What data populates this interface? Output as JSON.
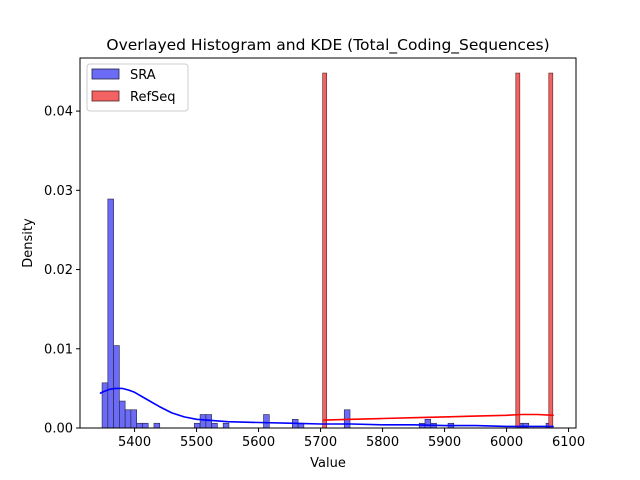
{
  "chart_data": {
    "type": "bar",
    "title": "Overlayed Histogram and KDE (Total_Coding_Sequences)",
    "xlabel": "Value",
    "ylabel": "Density",
    "xlim": [
      5312,
      6112
    ],
    "ylim": [
      0,
      0.0467
    ],
    "xticks": [
      5400,
      5500,
      5600,
      5700,
      5800,
      5900,
      6000,
      6100
    ],
    "yticks": [
      0.0,
      0.01,
      0.02,
      0.03,
      0.04
    ],
    "ytick_labels": [
      "0.00",
      "0.01",
      "0.02",
      "0.03",
      "0.04"
    ],
    "legend": {
      "position": "top-left"
    },
    "bin_width": 9.3,
    "series": [
      {
        "name": "SRA",
        "color": "#0000ff",
        "bar_color": "#6b6bf5",
        "edge_color": "#222244",
        "bars": [
          {
            "x": 5347.6,
            "y": 0.0057
          },
          {
            "x": 5356.9,
            "y": 0.0289
          },
          {
            "x": 5366.2,
            "y": 0.0104
          },
          {
            "x": 5375.5,
            "y": 0.0034
          },
          {
            "x": 5384.8,
            "y": 0.0023
          },
          {
            "x": 5394.1,
            "y": 0.0023
          },
          {
            "x": 5403.4,
            "y": 0.0006
          },
          {
            "x": 5412.7,
            "y": 0.0006
          },
          {
            "x": 5431.3,
            "y": 0.0006
          },
          {
            "x": 5496.4,
            "y": 0.0006
          },
          {
            "x": 5505.7,
            "y": 0.0017
          },
          {
            "x": 5515.0,
            "y": 0.0017
          },
          {
            "x": 5524.3,
            "y": 0.0006
          },
          {
            "x": 5542.9,
            "y": 0.0006
          },
          {
            "x": 5608.0,
            "y": 0.0017
          },
          {
            "x": 5654.5,
            "y": 0.0011
          },
          {
            "x": 5663.8,
            "y": 0.0006
          },
          {
            "x": 5738.2,
            "y": 0.0023
          },
          {
            "x": 5859.1,
            "y": 0.0006
          },
          {
            "x": 5868.4,
            "y": 0.0011
          },
          {
            "x": 5877.7,
            "y": 0.0006
          },
          {
            "x": 5905.6,
            "y": 0.0006
          },
          {
            "x": 6017.2,
            "y": 0.0006
          },
          {
            "x": 6026.5,
            "y": 0.0006
          },
          {
            "x": 6063.7,
            "y": 0.0006
          }
        ],
        "kde": {
          "x": [
            5345,
            5350,
            5360,
            5370,
            5380,
            5390,
            5400,
            5420,
            5440,
            5460,
            5480,
            5500,
            5550,
            5600,
            5650,
            5700,
            5750,
            5800,
            5850,
            5900,
            5950,
            6000,
            6050,
            6075
          ],
          "y": [
            0.0044,
            0.0046,
            0.0049,
            0.005,
            0.005,
            0.0048,
            0.0045,
            0.0036,
            0.0027,
            0.0019,
            0.0014,
            0.0011,
            0.0008,
            0.0007,
            0.0006,
            0.0005,
            0.0005,
            0.0004,
            0.0004,
            0.0003,
            0.0003,
            0.0002,
            0.0002,
            0.0002
          ]
        }
      },
      {
        "name": "RefSeq",
        "color": "#ff0000",
        "bar_color": "#f26262",
        "edge_color": "#552222",
        "bars": [
          {
            "x": 5703.4,
            "y": 0.0448
          },
          {
            "x": 6014.9,
            "y": 0.0448
          },
          {
            "x": 6068.1,
            "y": 0.0448
          }
        ],
        "bar_width": 6.5,
        "kde": {
          "x": [
            5705,
            5750,
            5800,
            5850,
            5900,
            5950,
            6000,
            6025,
            6050,
            6075
          ],
          "y": [
            0.001,
            0.0011,
            0.0012,
            0.0013,
            0.0014,
            0.0015,
            0.0016,
            0.0017,
            0.0017,
            0.0016
          ]
        }
      }
    ]
  }
}
